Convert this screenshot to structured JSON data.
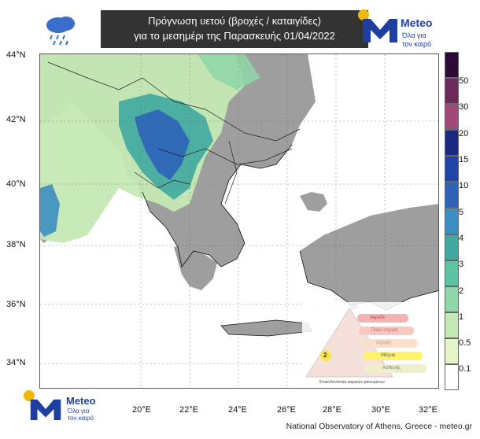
{
  "header": {
    "title_line1": "Πρόγνωση υετού (βροχές / καταιγίδες)",
    "title_line2": "για το μεσημέρι της Παρασκευής 01/04/2022",
    "weather_icon": "rain-cloud-icon"
  },
  "logo": {
    "brand": "Meteo",
    "tagline_1": "Όλα για",
    "tagline_2": "τον καιρό"
  },
  "map": {
    "lat_labels": [
      "44°N",
      "42°N",
      "40°N",
      "38°N",
      "36°N",
      "34°N"
    ],
    "lon_labels": [
      "20°E",
      "22°E",
      "24°E",
      "26°E",
      "28°E",
      "30°E",
      "32°E"
    ]
  },
  "colorbar": {
    "labels": [
      "50",
      "30",
      "20",
      "15",
      "10",
      "5",
      "4",
      "3",
      "2",
      "1",
      "0.5",
      "0.1"
    ],
    "colors": [
      "#2d0b38",
      "#6e2a5c",
      "#a04978",
      "#1b2a80",
      "#2244a8",
      "#2f63b8",
      "#3c8fc0",
      "#3fa89f",
      "#5cc3a3",
      "#8fd6a8",
      "#c4e9b4",
      "#e6f5c8",
      "#ffffff"
    ]
  },
  "legend_box": {
    "levels": [
      "Ακραία",
      "Πολύ ισχυρή",
      "Ισχυρή",
      "Μέτρια",
      "Ασθενής"
    ],
    "current_level": "2",
    "caption": "Επικινδυνότητα καιρικών φαινομένων"
  },
  "footer": {
    "credit": "National Observatory of Athens, Greece - meteo.gr"
  }
}
